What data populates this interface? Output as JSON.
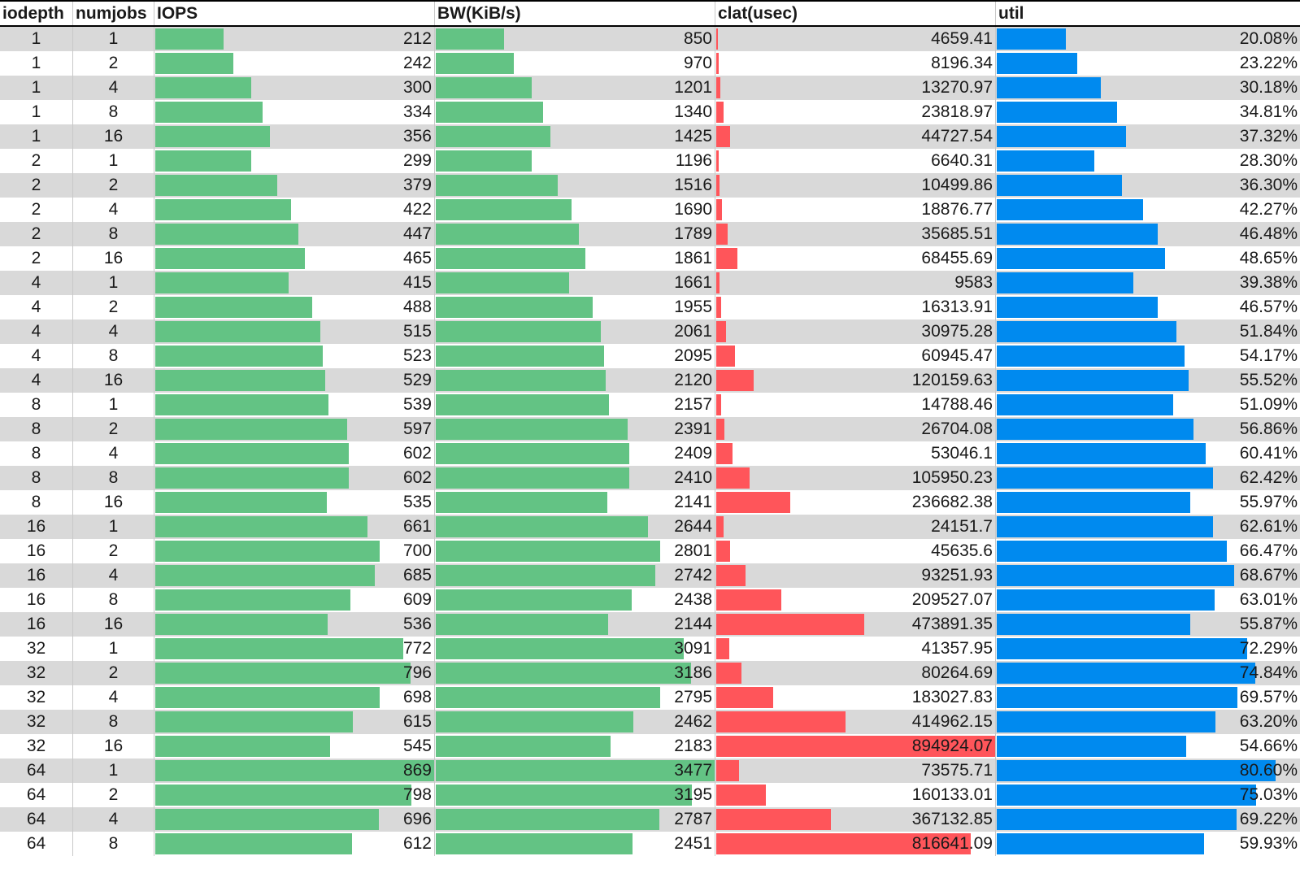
{
  "headers": {
    "iodepth": "iodepth",
    "numjobs": "numjobs",
    "iops": "IOPS",
    "bw": "BW(KiB/s)",
    "clat": "clat(usec)",
    "util": "util"
  },
  "colors": {
    "iops_bar": "#63c384",
    "bw_bar": "#63c384",
    "clat_bar": "#ff555a",
    "util_bar": "#008aef",
    "band": "#d9d9d9"
  },
  "scale": {
    "iops_max": 869,
    "bw_max": 3477,
    "clat_max": 894924.07,
    "util_max": 80.6
  },
  "rows": [
    {
      "iodepth": "1",
      "numjobs": "1",
      "iops": "212",
      "bw": "850",
      "clat": "4659.41",
      "util": "20.08%"
    },
    {
      "iodepth": "1",
      "numjobs": "2",
      "iops": "242",
      "bw": "970",
      "clat": "8196.34",
      "util": "23.22%"
    },
    {
      "iodepth": "1",
      "numjobs": "4",
      "iops": "300",
      "bw": "1201",
      "clat": "13270.97",
      "util": "30.18%"
    },
    {
      "iodepth": "1",
      "numjobs": "8",
      "iops": "334",
      "bw": "1340",
      "clat": "23818.97",
      "util": "34.81%"
    },
    {
      "iodepth": "1",
      "numjobs": "16",
      "iops": "356",
      "bw": "1425",
      "clat": "44727.54",
      "util": "37.32%"
    },
    {
      "iodepth": "2",
      "numjobs": "1",
      "iops": "299",
      "bw": "1196",
      "clat": "6640.31",
      "util": "28.30%"
    },
    {
      "iodepth": "2",
      "numjobs": "2",
      "iops": "379",
      "bw": "1516",
      "clat": "10499.86",
      "util": "36.30%"
    },
    {
      "iodepth": "2",
      "numjobs": "4",
      "iops": "422",
      "bw": "1690",
      "clat": "18876.77",
      "util": "42.27%"
    },
    {
      "iodepth": "2",
      "numjobs": "8",
      "iops": "447",
      "bw": "1789",
      "clat": "35685.51",
      "util": "46.48%"
    },
    {
      "iodepth": "2",
      "numjobs": "16",
      "iops": "465",
      "bw": "1861",
      "clat": "68455.69",
      "util": "48.65%"
    },
    {
      "iodepth": "4",
      "numjobs": "1",
      "iops": "415",
      "bw": "1661",
      "clat": "9583",
      "util": "39.38%"
    },
    {
      "iodepth": "4",
      "numjobs": "2",
      "iops": "488",
      "bw": "1955",
      "clat": "16313.91",
      "util": "46.57%"
    },
    {
      "iodepth": "4",
      "numjobs": "4",
      "iops": "515",
      "bw": "2061",
      "clat": "30975.28",
      "util": "51.84%"
    },
    {
      "iodepth": "4",
      "numjobs": "8",
      "iops": "523",
      "bw": "2095",
      "clat": "60945.47",
      "util": "54.17%"
    },
    {
      "iodepth": "4",
      "numjobs": "16",
      "iops": "529",
      "bw": "2120",
      "clat": "120159.63",
      "util": "55.52%"
    },
    {
      "iodepth": "8",
      "numjobs": "1",
      "iops": "539",
      "bw": "2157",
      "clat": "14788.46",
      "util": "51.09%"
    },
    {
      "iodepth": "8",
      "numjobs": "2",
      "iops": "597",
      "bw": "2391",
      "clat": "26704.08",
      "util": "56.86%"
    },
    {
      "iodepth": "8",
      "numjobs": "4",
      "iops": "602",
      "bw": "2409",
      "clat": "53046.1",
      "util": "60.41%"
    },
    {
      "iodepth": "8",
      "numjobs": "8",
      "iops": "602",
      "bw": "2410",
      "clat": "105950.23",
      "util": "62.42%"
    },
    {
      "iodepth": "8",
      "numjobs": "16",
      "iops": "535",
      "bw": "2141",
      "clat": "236682.38",
      "util": "55.97%"
    },
    {
      "iodepth": "16",
      "numjobs": "1",
      "iops": "661",
      "bw": "2644",
      "clat": "24151.7",
      "util": "62.61%"
    },
    {
      "iodepth": "16",
      "numjobs": "2",
      "iops": "700",
      "bw": "2801",
      "clat": "45635.6",
      "util": "66.47%"
    },
    {
      "iodepth": "16",
      "numjobs": "4",
      "iops": "685",
      "bw": "2742",
      "clat": "93251.93",
      "util": "68.67%"
    },
    {
      "iodepth": "16",
      "numjobs": "8",
      "iops": "609",
      "bw": "2438",
      "clat": "209527.07",
      "util": "63.01%"
    },
    {
      "iodepth": "16",
      "numjobs": "16",
      "iops": "536",
      "bw": "2144",
      "clat": "473891.35",
      "util": "55.87%"
    },
    {
      "iodepth": "32",
      "numjobs": "1",
      "iops": "772",
      "bw": "3091",
      "clat": "41357.95",
      "util": "72.29%"
    },
    {
      "iodepth": "32",
      "numjobs": "2",
      "iops": "796",
      "bw": "3186",
      "clat": "80264.69",
      "util": "74.84%"
    },
    {
      "iodepth": "32",
      "numjobs": "4",
      "iops": "698",
      "bw": "2795",
      "clat": "183027.83",
      "util": "69.57%"
    },
    {
      "iodepth": "32",
      "numjobs": "8",
      "iops": "615",
      "bw": "2462",
      "clat": "414962.15",
      "util": "63.20%"
    },
    {
      "iodepth": "32",
      "numjobs": "16",
      "iops": "545",
      "bw": "2183",
      "clat": "894924.07",
      "util": "54.66%"
    },
    {
      "iodepth": "64",
      "numjobs": "1",
      "iops": "869",
      "bw": "3477",
      "clat": "73575.71",
      "util": "80.60%"
    },
    {
      "iodepth": "64",
      "numjobs": "2",
      "iops": "798",
      "bw": "3195",
      "clat": "160133.01",
      "util": "75.03%"
    },
    {
      "iodepth": "64",
      "numjobs": "4",
      "iops": "696",
      "bw": "2787",
      "clat": "367132.85",
      "util": "69.22%"
    },
    {
      "iodepth": "64",
      "numjobs": "8",
      "iops": "612",
      "bw": "2451",
      "clat": "816641.09",
      "util": "59.93%"
    }
  ]
}
